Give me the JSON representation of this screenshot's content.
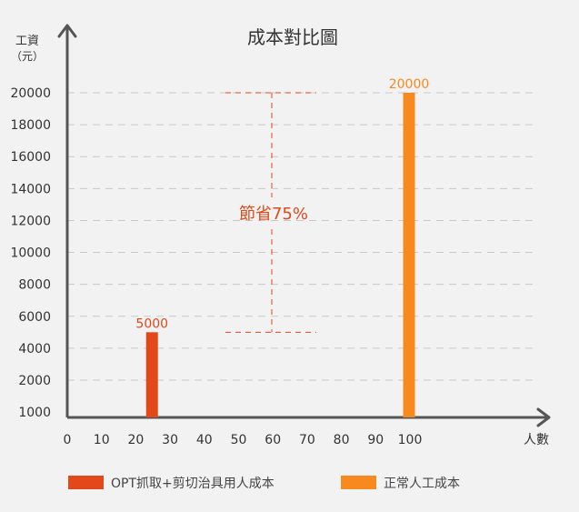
{
  "chart_data": {
    "type": "bar",
    "title": "成本對比圖",
    "ylabel_line1": "工資",
    "ylabel_line2": "（元）",
    "xlabel": "人數",
    "yticks": [
      1000,
      2000,
      4000,
      6000,
      8000,
      10000,
      12000,
      14000,
      16000,
      18000,
      20000
    ],
    "xticks": [
      0,
      10,
      20,
      30,
      40,
      50,
      60,
      70,
      80,
      90,
      100
    ],
    "grid": true,
    "series": [
      {
        "name": "OPT抓取+剪切治具用人成本",
        "x": 25,
        "value": 5000,
        "label": "5000",
        "color": "#e2481a"
      },
      {
        "name": "正常人工成本",
        "x": 100,
        "value": 20000,
        "label": "20000",
        "color": "#f7891e"
      }
    ],
    "annotation": {
      "text": "節省75%",
      "from": 5000,
      "to": 20000,
      "color": "#e2481a"
    },
    "legend": {
      "position": "bottom"
    }
  }
}
